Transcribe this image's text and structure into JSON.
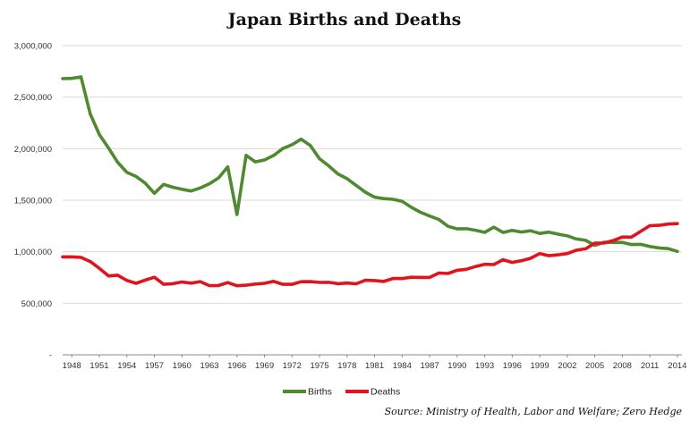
{
  "chart_data": {
    "type": "line",
    "title": "Japan Births and Deaths",
    "source": "Source: Ministry of Health, Labor and Welfare; Zero Hedge",
    "ylim": [
      0,
      3000000
    ],
    "y_ticks": [
      "-",
      "500,000",
      "1,000,000",
      "1,500,000",
      "2,000,000",
      "2,500,000",
      "3,000,000"
    ],
    "x_ticks": [
      "1948",
      "1951",
      "1954",
      "1957",
      "1960",
      "1963",
      "1966",
      "1969",
      "1972",
      "1975",
      "1978",
      "1981",
      "1984",
      "1987",
      "1990",
      "1993",
      "1996",
      "1999",
      "2002",
      "2005",
      "2008",
      "2011",
      "2014"
    ],
    "grid": true,
    "legend_position": "bottom",
    "x": [
      1947,
      1948,
      1949,
      1950,
      1951,
      1952,
      1953,
      1954,
      1955,
      1956,
      1957,
      1958,
      1959,
      1960,
      1961,
      1962,
      1963,
      1964,
      1965,
      1966,
      1967,
      1968,
      1969,
      1970,
      1971,
      1972,
      1973,
      1974,
      1975,
      1976,
      1977,
      1978,
      1979,
      1980,
      1981,
      1982,
      1983,
      1984,
      1985,
      1986,
      1987,
      1988,
      1989,
      1990,
      1991,
      1992,
      1993,
      1994,
      1995,
      1996,
      1997,
      1998,
      1999,
      2000,
      2001,
      2002,
      2003,
      2004,
      2005,
      2006,
      2007,
      2008,
      2009,
      2010,
      2011,
      2012,
      2013,
      2014
    ],
    "series": [
      {
        "name": "Births",
        "color": "#4f8a31",
        "values": [
          2678792,
          2681624,
          2696638,
          2337507,
          2137689,
          2005162,
          1868040,
          1769580,
          1730692,
          1665278,
          1566713,
          1653469,
          1626088,
          1606041,
          1589372,
          1618616,
          1659521,
          1716761,
          1823697,
          1360974,
          1935647,
          1871839,
          1889815,
          1934239,
          2000973,
          2038682,
          2091983,
          2029989,
          1901440,
          1832617,
          1755100,
          1708643,
          1642580,
          1576889,
          1529455,
          1515392,
          1508687,
          1489780,
          1431577,
          1382946,
          1346658,
          1314006,
          1246802,
          1221585,
          1223245,
          1208989,
          1188282,
          1238328,
          1187064,
          1206555,
          1191665,
          1203147,
          1177669,
          1190547,
          1170662,
          1153855,
          1123610,
          1110721,
          1062530,
          1092674,
          1089818,
          1091156,
          1070035,
          1071304,
          1050806,
          1037231,
          1029816,
          1003539
        ]
      },
      {
        "name": "Deaths",
        "color": "#e0141e",
        "values": [
          950610,
          950610,
          945444,
          904876,
          838998,
          765068,
          772547,
          721491,
          693523,
          724460,
          752445,
          684189,
          689959,
          706599,
          695644,
          710265,
          670770,
          673067,
          700438,
          670342,
          675006,
          686555,
          693787,
          712962,
          684521,
          683751,
          709416,
          710510,
          702275,
          703270,
          690074,
          695821,
          689664,
          722801,
          720262,
          711883,
          740038,
          740247,
          752283,
          750620,
          751172,
          793014,
          788594,
          820305,
          829797,
          856643,
          878532,
          875933,
          922139,
          896211,
          913402,
          936484,
          982031,
          961653,
          970331,
          982379,
          1014951,
          1028602,
          1083796,
          1084451,
          1108334,
          1142407,
          1141865,
          1197012,
          1253066,
          1256359,
          1268436,
          1273004
        ]
      }
    ]
  }
}
